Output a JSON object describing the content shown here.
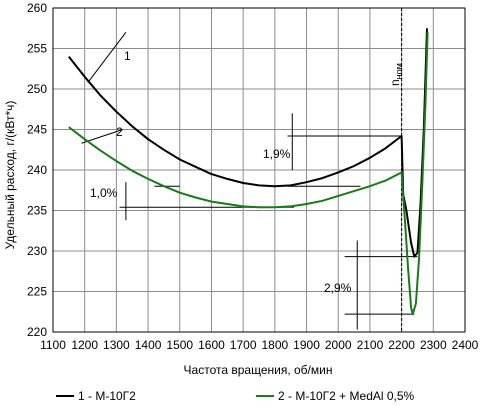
{
  "chart_data": {
    "type": "line",
    "title": "",
    "xlabel": "Частота вращения, об/мин",
    "ylabel": "Удельный расход, г/(кВт*ч)",
    "xlim": [
      1100,
      2400
    ],
    "ylim": [
      220,
      260
    ],
    "x_ticks": [
      "1100",
      "1200",
      "1300",
      "1400",
      "1500",
      "1600",
      "1700",
      "1800",
      "1900",
      "2000",
      "2100",
      "2200",
      "2300",
      "2400"
    ],
    "y_ticks": [
      "220",
      "225",
      "230",
      "235",
      "240",
      "245",
      "250",
      "255",
      "260"
    ],
    "grid": true,
    "legend_position": "bottom",
    "series": [
      {
        "name": "1 - М-10Г2",
        "color": "#000000",
        "curve_label": "1",
        "points": [
          [
            1150,
            254
          ],
          [
            1200,
            251.5
          ],
          [
            1250,
            249.2
          ],
          [
            1300,
            247.2
          ],
          [
            1350,
            245.4
          ],
          [
            1400,
            243.8
          ],
          [
            1450,
            242.5
          ],
          [
            1500,
            241.3
          ],
          [
            1550,
            240.4
          ],
          [
            1600,
            239.5
          ],
          [
            1650,
            238.9
          ],
          [
            1700,
            238.4
          ],
          [
            1750,
            238.1
          ],
          [
            1800,
            238
          ],
          [
            1850,
            238.1
          ],
          [
            1900,
            238.5
          ],
          [
            1950,
            239
          ],
          [
            2000,
            239.7
          ],
          [
            2050,
            240.5
          ],
          [
            2100,
            241.5
          ],
          [
            2150,
            242.7
          ],
          [
            2200,
            244.2
          ],
          [
            2205,
            237
          ],
          [
            2215,
            235
          ],
          [
            2230,
            231
          ],
          [
            2240,
            229.3
          ],
          [
            2250,
            229.8
          ],
          [
            2260,
            236
          ],
          [
            2270,
            245
          ],
          [
            2280,
            257.5
          ]
        ]
      },
      {
        "name": "2 - М-10Г2 + MedAl 0,5%",
        "color": "#1a7a1a",
        "curve_label": "2",
        "points": [
          [
            1150,
            245.3
          ],
          [
            1200,
            243.8
          ],
          [
            1250,
            242.4
          ],
          [
            1300,
            241.1
          ],
          [
            1350,
            239.9
          ],
          [
            1400,
            238.9
          ],
          [
            1450,
            238
          ],
          [
            1500,
            237.2
          ],
          [
            1550,
            236.6
          ],
          [
            1600,
            236.1
          ],
          [
            1650,
            235.8
          ],
          [
            1700,
            235.5
          ],
          [
            1750,
            235.4
          ],
          [
            1800,
            235.4
          ],
          [
            1850,
            235.5
          ],
          [
            1900,
            235.8
          ],
          [
            1950,
            236.2
          ],
          [
            2000,
            236.8
          ],
          [
            2050,
            237.4
          ],
          [
            2100,
            238
          ],
          [
            2150,
            238.7
          ],
          [
            2200,
            239.7
          ],
          [
            2210,
            234
          ],
          [
            2220,
            228
          ],
          [
            2230,
            223
          ],
          [
            2235,
            222.2
          ],
          [
            2245,
            223.5
          ],
          [
            2255,
            229
          ],
          [
            2265,
            238
          ],
          [
            2275,
            248
          ],
          [
            2282,
            257
          ]
        ]
      }
    ],
    "annotations": [
      {
        "text": "1,9%"
      },
      {
        "text": "1,0%"
      },
      {
        "text": "2,9%"
      },
      {
        "text": "n",
        "subscript": "ном"
      }
    ]
  }
}
